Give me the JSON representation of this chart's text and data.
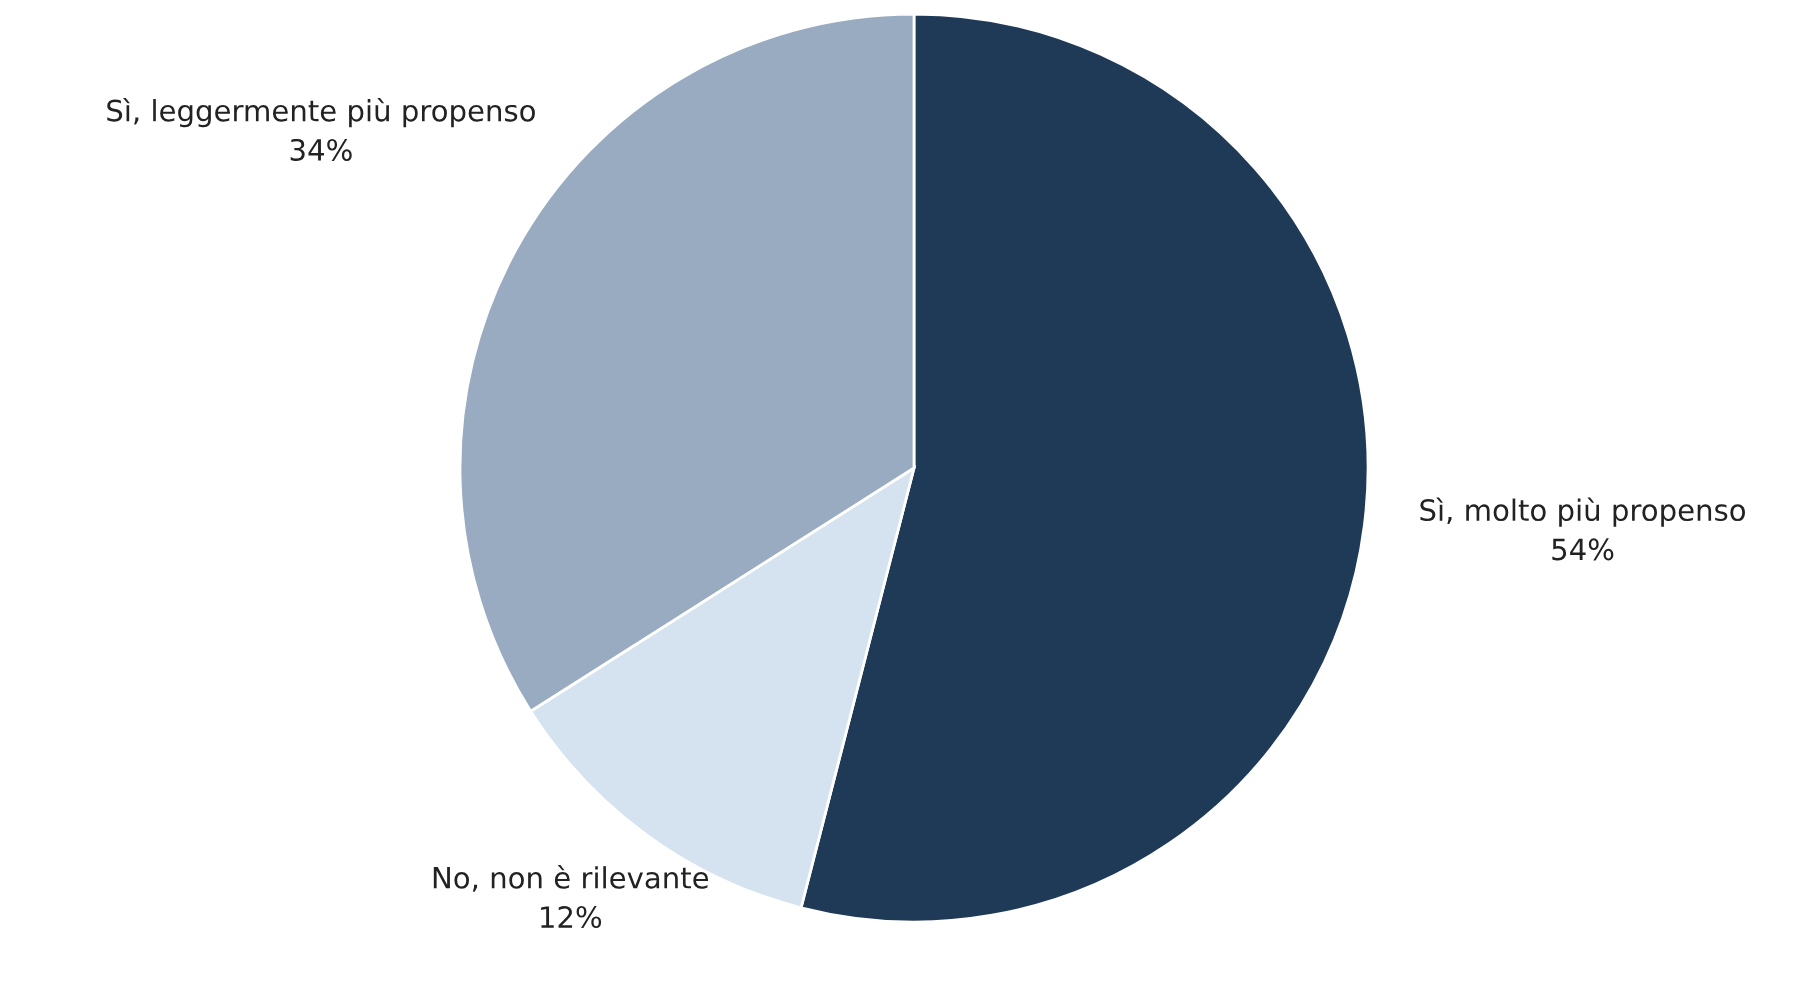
{
  "chart_data": {
    "type": "pie",
    "categories": [
      "Sì, molto più propenso",
      "No, non è rilevante",
      "Sì, leggermente più propenso"
    ],
    "values": [
      54,
      12,
      34
    ],
    "value_labels": [
      "54%",
      "12%",
      "34%"
    ],
    "colors": [
      "#1f3a56",
      "#d5e2ef",
      "#98abc0"
    ]
  }
}
